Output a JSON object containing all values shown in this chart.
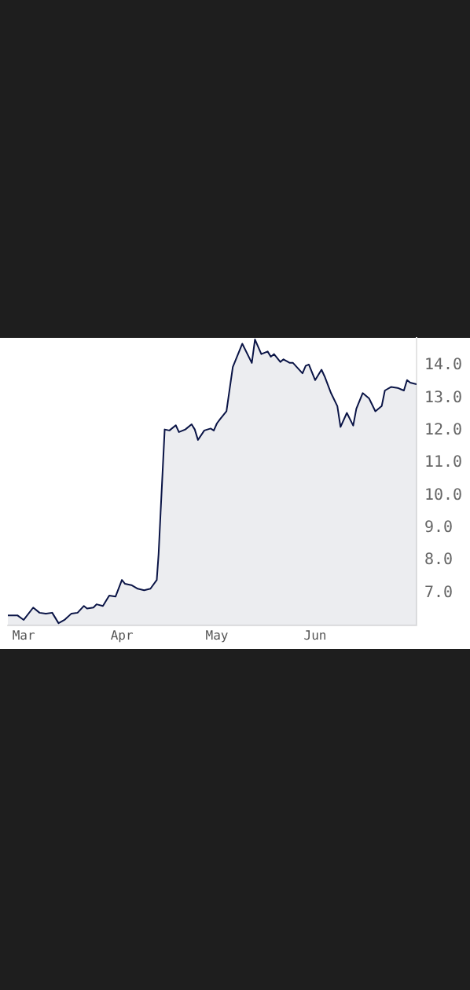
{
  "chart_data": {
    "type": "area",
    "x": [
      "--02-24",
      "--02-27",
      "--03-01",
      "--03-04",
      "--03-06",
      "--03-08",
      "--03-10",
      "--03-12",
      "--03-14",
      "--03-16",
      "--03-18",
      "--03-20",
      "--03-21",
      "--03-23",
      "--03-24",
      "--03-26",
      "--03-28",
      "--03-30",
      "--04-01",
      "--04-02",
      "--04-04",
      "--04-06",
      "--04-08",
      "--04-10",
      "--04-12",
      "--04-12T14:00",
      "--04-13T05:00",
      "--04-14T12:00",
      "--04-16",
      "--04-18",
      "--04-19",
      "--04-21",
      "--04-23",
      "--04-24",
      "--04-25",
      "--04-27",
      "--04-29",
      "--04-30",
      "--05-01",
      "--05-02",
      "--05-04",
      "--05-06",
      "--05-09",
      "--05-12",
      "--05-13",
      "--05-15",
      "--05-17",
      "--05-18",
      "--05-19",
      "--05-21",
      "--05-22",
      "--05-24",
      "--05-25",
      "--05-28",
      "--05-29",
      "--05-30",
      "--06-01",
      "--06-03",
      "--06-04",
      "--06-06",
      "--06-08",
      "--06-09",
      "--06-11",
      "--06-13",
      "--06-14",
      "--06-16",
      "--06-18",
      "--06-20",
      "--06-22",
      "--06-23",
      "--06-25",
      "--06-27",
      "--06-29",
      "--06-30",
      "--07-01",
      "--07-03"
    ],
    "series": [
      {
        "color": "#0a1446",
        "values": [
          6.31,
          6.31,
          6.17,
          6.55,
          6.39,
          6.36,
          6.39,
          6.07,
          6.18,
          6.36,
          6.39,
          6.6,
          6.52,
          6.55,
          6.65,
          6.6,
          6.92,
          6.89,
          7.4,
          7.28,
          7.24,
          7.13,
          7.08,
          7.13,
          7.4,
          8.2,
          9.47,
          12.03,
          12.0,
          12.16,
          11.95,
          12.03,
          12.19,
          12.03,
          11.71,
          12.0,
          12.06,
          12.0,
          12.22,
          12.35,
          12.59,
          13.95,
          14.67,
          14.08,
          14.8,
          14.35,
          14.43,
          14.27,
          14.35,
          14.11,
          14.19,
          14.08,
          14.08,
          13.76,
          13.99,
          14.03,
          13.55,
          13.87,
          13.66,
          13.15,
          12.75,
          12.11,
          12.54,
          12.15,
          12.67,
          13.15,
          12.99,
          12.59,
          12.75,
          13.23,
          13.34,
          13.31,
          13.23,
          13.55,
          13.47,
          13.42
        ]
      }
    ],
    "xlim": [
      "--02-24",
      "--07-03"
    ],
    "xticks": [
      {
        "value": "--03-01",
        "label": "Mar"
      },
      {
        "value": "--04-01",
        "label": "Apr"
      },
      {
        "value": "--05-01",
        "label": "May"
      },
      {
        "value": "--06-01",
        "label": "Jun"
      }
    ],
    "ylim": [
      6.0,
      14.85
    ],
    "yticks": [
      {
        "value": 7,
        "label": "7.0"
      },
      {
        "value": 8,
        "label": "8.0"
      },
      {
        "value": 9,
        "label": "9.0"
      },
      {
        "value": 10,
        "label": "10.0"
      },
      {
        "value": 11,
        "label": "11.0"
      },
      {
        "value": 12,
        "label": "12.0"
      },
      {
        "value": 13,
        "label": "13.0"
      },
      {
        "value": 14,
        "label": "14.0"
      }
    ],
    "grid": false,
    "legend": false
  }
}
